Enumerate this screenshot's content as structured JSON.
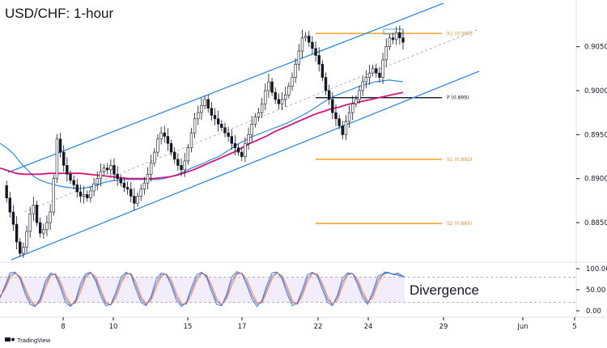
{
  "chart_data": {
    "type": "candlestick",
    "title": "USD/CHF: 1-hour",
    "y_ticks": [
      "0.90500",
      "0.90000",
      "0.89500",
      "0.89000",
      "0.88500"
    ],
    "y_tick_values": [
      0.905,
      0.9,
      0.895,
      0.89,
      0.885
    ],
    "ylim": [
      0.8805,
      0.9103
    ],
    "x_ticks": [
      "8",
      "10",
      "15",
      "17",
      "22",
      "24",
      "29",
      "Jun",
      "5"
    ],
    "levels": [
      {
        "label": "R1 (0.906)",
        "value": 0.9065,
        "color": "#f7a535"
      },
      {
        "label": "P (0.899)",
        "value": 0.8992,
        "color": "#131722"
      },
      {
        "label": "S1 (0.892)",
        "value": 0.8922,
        "color": "#f7a535"
      },
      {
        "label": "S2 (0.885)",
        "value": 0.8849,
        "color": "#f7a535"
      }
    ],
    "price_series": [
      0.8892,
      0.8878,
      0.8862,
      0.8848,
      0.8828,
      0.8815,
      0.8822,
      0.884,
      0.886,
      0.887,
      0.885,
      0.8838,
      0.8842,
      0.885,
      0.8862,
      0.89,
      0.8945,
      0.893,
      0.8915,
      0.8905,
      0.8898,
      0.8893,
      0.8885,
      0.888,
      0.8882,
      0.8878,
      0.8886,
      0.8894,
      0.89,
      0.8908,
      0.8912,
      0.891,
      0.8915,
      0.8905,
      0.89,
      0.8895,
      0.889,
      0.8888,
      0.888,
      0.8872,
      0.888,
      0.8888,
      0.8895,
      0.8905,
      0.8918,
      0.893,
      0.8945,
      0.8952,
      0.8948,
      0.894,
      0.893,
      0.8922,
      0.8915,
      0.891,
      0.892,
      0.8935,
      0.8952,
      0.8968,
      0.8975,
      0.8983,
      0.899,
      0.898,
      0.8972,
      0.8968,
      0.8962,
      0.8958,
      0.8952,
      0.8948,
      0.894,
      0.8935,
      0.893,
      0.8925,
      0.894,
      0.895,
      0.8962,
      0.897,
      0.8975,
      0.8985,
      0.9,
      0.901,
      0.8998,
      0.899,
      0.8985,
      0.899,
      0.8995,
      0.9005,
      0.9015,
      0.903,
      0.9045,
      0.906,
      0.9062,
      0.9055,
      0.9048,
      0.904,
      0.903,
      0.9015,
      0.9,
      0.899,
      0.8975,
      0.8968,
      0.896,
      0.895,
      0.8965,
      0.8975,
      0.8985,
      0.899,
      0.9,
      0.901,
      0.9015,
      0.902,
      0.9025,
      0.902,
      0.9015,
      0.9035,
      0.905,
      0.906,
      0.9058,
      0.9066,
      0.906,
      0.9055
    ],
    "ma_blue": [
      0.894,
      0.8935,
      0.8928,
      0.8918,
      0.891,
      0.8902,
      0.8898,
      0.8895,
      0.8893,
      0.8891,
      0.889,
      0.8889,
      0.8889,
      0.889,
      0.8892,
      0.8895,
      0.8897,
      0.8898,
      0.8899,
      0.8899,
      0.8899,
      0.8899,
      0.8899,
      0.8899,
      0.89,
      0.8902,
      0.8905,
      0.8908,
      0.8912,
      0.8915,
      0.8918,
      0.8922,
      0.8925,
      0.893,
      0.8935,
      0.894,
      0.8944,
      0.8948,
      0.8951,
      0.8954,
      0.8957,
      0.896,
      0.8963,
      0.8967,
      0.8971,
      0.8975,
      0.898,
      0.8985,
      0.899,
      0.8994,
      0.8997,
      0.9,
      0.9003,
      0.9006,
      0.9008,
      0.901,
      0.9011,
      0.9012,
      0.9011,
      0.901
    ],
    "ma_magenta": [
      0.8912,
      0.8909,
      0.8906,
      0.8905,
      0.8905,
      0.8905,
      0.8906,
      0.8906,
      0.8906,
      0.8906,
      0.8906,
      0.8905,
      0.8904,
      0.8903,
      0.8902,
      0.8901,
      0.89,
      0.89,
      0.89,
      0.89,
      0.8901,
      0.8902,
      0.8904,
      0.8907,
      0.891,
      0.8914,
      0.8918,
      0.8922,
      0.8926,
      0.893,
      0.8935,
      0.894,
      0.8944,
      0.8948,
      0.8953,
      0.8957,
      0.8961,
      0.8965,
      0.8969,
      0.8973,
      0.8976,
      0.8979,
      0.8981,
      0.8984,
      0.8986,
      0.8988,
      0.899,
      0.8992,
      0.8994,
      0.8996,
      0.8998
    ],
    "oscillator": {
      "y_ticks": [
        "100.00",
        "50.00",
        "0.00"
      ],
      "y_tick_values": [
        100,
        50,
        0
      ],
      "ylim": [
        0,
        100
      ],
      "overbought": 80,
      "oversold": 20,
      "k": [
        30,
        60,
        90,
        92,
        75,
        40,
        15,
        10,
        30,
        70,
        90,
        85,
        55,
        20,
        10,
        25,
        65,
        88,
        92,
        70,
        35,
        12,
        15,
        45,
        80,
        92,
        85,
        50,
        20,
        12,
        35,
        75,
        90,
        86,
        60,
        25,
        10,
        20,
        55,
        85,
        92,
        80,
        45,
        15,
        12,
        40,
        80,
        93,
        88,
        60,
        28,
        10,
        25,
        62,
        90,
        92,
        75,
        40,
        12,
        18,
        50,
        85,
        92,
        82,
        50,
        20,
        12,
        38,
        78,
        90,
        88,
        62,
        30,
        15,
        45,
        82,
        88,
        92,
        86,
        90,
        80
      ],
      "d": [
        35,
        50,
        78,
        88,
        82,
        55,
        28,
        12,
        20,
        52,
        82,
        88,
        70,
        38,
        15,
        18,
        45,
        78,
        90,
        82,
        52,
        22,
        13,
        30,
        62,
        86,
        89,
        68,
        35,
        16,
        24,
        55,
        82,
        88,
        74,
        42,
        18,
        15,
        38,
        70,
        88,
        86,
        62,
        30,
        14,
        28,
        60,
        86,
        90,
        75,
        45,
        20,
        18,
        45,
        76,
        90,
        84,
        58,
        26,
        15,
        35,
        68,
        88,
        88,
        66,
        35,
        16,
        25,
        58,
        84,
        89,
        75,
        46,
        22,
        30,
        64,
        85,
        90,
        88,
        88,
        84
      ]
    },
    "annotation": "Divergence",
    "grid": false,
    "legend": "none"
  },
  "brand": "TradingView"
}
